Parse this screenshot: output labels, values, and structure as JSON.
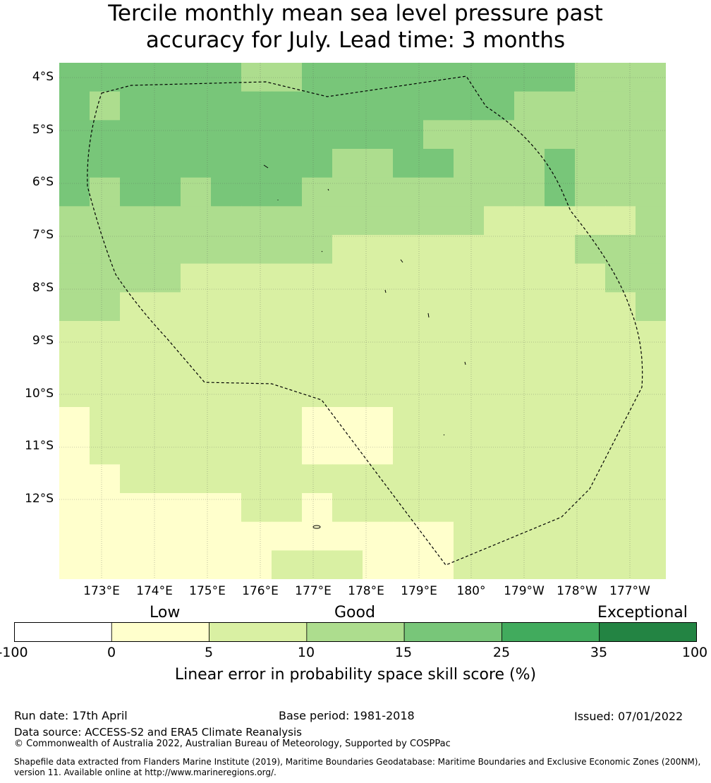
{
  "title_line1": "Tercile monthly mean sea level pressure past",
  "title_line2": "accuracy for July. Lead time: 3 months",
  "map": {
    "lat_labels": [
      "4°S",
      "5°S",
      "6°S",
      "7°S",
      "8°S",
      "9°S",
      "10°S",
      "11°S",
      "12°S"
    ],
    "lon_labels": [
      "173°E",
      "174°E",
      "175°E",
      "176°E",
      "177°E",
      "178°E",
      "179°E",
      "180°",
      "179°W",
      "178°W",
      "177°W"
    ],
    "category_colors": [
      "#ffffcc",
      "#d9f0a3",
      "#addd8e",
      "#78c679",
      "#41ab5d",
      "#238443"
    ],
    "skill_grid": [
      [
        3,
        3,
        3,
        3,
        3,
        3,
        2,
        2,
        3,
        3,
        3,
        3,
        3,
        3,
        3,
        3,
        3,
        2,
        2,
        2
      ],
      [
        3,
        2,
        3,
        3,
        3,
        3,
        3,
        3,
        3,
        3,
        3,
        3,
        3,
        3,
        3,
        2,
        2,
        2,
        2,
        2
      ],
      [
        3,
        3,
        3,
        3,
        3,
        3,
        3,
        3,
        3,
        3,
        3,
        3,
        2,
        2,
        2,
        2,
        2,
        2,
        2,
        2
      ],
      [
        3,
        3,
        3,
        3,
        3,
        3,
        3,
        3,
        3,
        2,
        2,
        3,
        3,
        2,
        2,
        2,
        3,
        2,
        2,
        2
      ],
      [
        3,
        2,
        3,
        3,
        2,
        3,
        3,
        3,
        2,
        2,
        2,
        2,
        2,
        2,
        2,
        2,
        3,
        2,
        2,
        2
      ],
      [
        2,
        2,
        2,
        2,
        2,
        2,
        2,
        2,
        2,
        2,
        2,
        2,
        2,
        2,
        1,
        1,
        1,
        1,
        1,
        2
      ],
      [
        2,
        2,
        2,
        2,
        2,
        2,
        2,
        2,
        2,
        1,
        1,
        1,
        1,
        1,
        1,
        1,
        1,
        2,
        2,
        2
      ],
      [
        2,
        2,
        2,
        2,
        1,
        1,
        1,
        1,
        1,
        1,
        1,
        1,
        1,
        1,
        1,
        1,
        1,
        1,
        2,
        2
      ],
      [
        2,
        2,
        1,
        1,
        1,
        1,
        1,
        1,
        1,
        1,
        1,
        1,
        1,
        1,
        1,
        1,
        1,
        1,
        1,
        2
      ],
      [
        1,
        1,
        1,
        1,
        1,
        1,
        1,
        1,
        1,
        1,
        1,
        1,
        1,
        1,
        1,
        1,
        1,
        1,
        1,
        1
      ],
      [
        1,
        1,
        1,
        1,
        1,
        1,
        1,
        1,
        1,
        1,
        1,
        1,
        1,
        1,
        1,
        1,
        1,
        1,
        1,
        1
      ],
      [
        1,
        1,
        1,
        1,
        1,
        1,
        1,
        1,
        1,
        1,
        1,
        1,
        1,
        1,
        1,
        1,
        1,
        1,
        1,
        1
      ],
      [
        0,
        1,
        1,
        1,
        1,
        1,
        1,
        1,
        0,
        0,
        0,
        1,
        1,
        1,
        1,
        1,
        1,
        1,
        1,
        1
      ],
      [
        0,
        1,
        1,
        1,
        1,
        1,
        1,
        1,
        0,
        0,
        0,
        1,
        1,
        1,
        1,
        1,
        1,
        1,
        1,
        1
      ],
      [
        0,
        0,
        1,
        1,
        1,
        1,
        1,
        1,
        1,
        1,
        1,
        1,
        1,
        1,
        1,
        1,
        1,
        1,
        1,
        1
      ],
      [
        0,
        0,
        0,
        0,
        0,
        0,
        1,
        1,
        0,
        1,
        1,
        1,
        1,
        1,
        1,
        1,
        1,
        1,
        1,
        1
      ],
      [
        0,
        0,
        0,
        0,
        0,
        0,
        0,
        0,
        0,
        0,
        0,
        0,
        0,
        1,
        1,
        1,
        1,
        1,
        1,
        1
      ],
      [
        0,
        0,
        0,
        0,
        0,
        0,
        0,
        1,
        1,
        1,
        0,
        0,
        0,
        1,
        1,
        1,
        1,
        1,
        1,
        1
      ]
    ]
  },
  "colorbar": {
    "categories": [
      "Low",
      "Good",
      "Exceptional"
    ],
    "tick_labels": [
      "-100",
      "0",
      "5",
      "10",
      "15",
      "25",
      "35",
      "100"
    ],
    "segment_colors": [
      "#ffffff",
      "#ffffcc",
      "#d9f0a3",
      "#addd8e",
      "#78c679",
      "#41ab5d",
      "#238443"
    ],
    "title": "Linear error in probability space skill score (%)"
  },
  "footer": {
    "run_date": "Run date: 17th April",
    "base_period": "Base period: 1981-2018",
    "issued": "Issued: 07/01/2022",
    "data_source": "Data source: ACCESS-S2 and ERA5 Climate Reanalysis",
    "copyright": "© Commonwealth of Australia 2022, Australian Bureau of Meteorology, Supported by COSPPac",
    "shapefile_line1": "Shapefile data extracted from Flanders Marine Institute (2019), Maritime Boundaries Geodatabase: Maritime Boundaries and Exclusive Economic Zones (200NM),",
    "shapefile_line2": "version 11. Available online at http://www.marineregions.org/."
  }
}
